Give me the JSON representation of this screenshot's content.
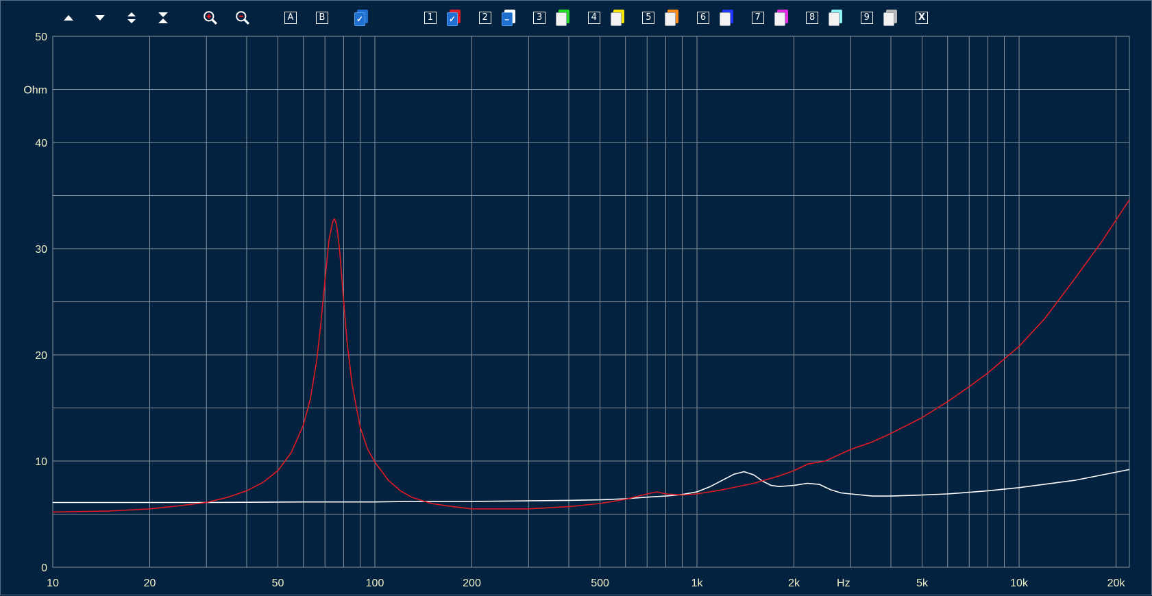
{
  "toolbar": {
    "nav_buttons": [
      {
        "name": "scroll-up",
        "icon": "triangle-up-icon"
      },
      {
        "name": "scroll-down",
        "icon": "triangle-down-icon"
      },
      {
        "name": "expand-range",
        "icon": "expand-arrows-icon"
      },
      {
        "name": "compress-range",
        "icon": "compress-arrows-icon"
      }
    ],
    "zoom_buttons": [
      {
        "name": "zoom-in",
        "icon": "zoom-in-icon"
      },
      {
        "name": "zoom-out",
        "icon": "zoom-out-icon"
      }
    ],
    "mode_buttons": [
      {
        "name": "mode-a",
        "label": "A"
      },
      {
        "name": "mode-b",
        "label": "B"
      }
    ],
    "overlay_slots": [
      {
        "label": "1",
        "color": "#e01b24",
        "state": "checked"
      },
      {
        "label": "2",
        "color": "#ffffff",
        "state": "minus"
      },
      {
        "label": "3",
        "color": "#22dd22",
        "state": "empty"
      },
      {
        "label": "4",
        "color": "#f5e600",
        "state": "empty"
      },
      {
        "label": "5",
        "color": "#ff8c1a",
        "state": "empty"
      },
      {
        "label": "6",
        "color": "#2233ff",
        "state": "empty"
      },
      {
        "label": "7",
        "color": "#e02be0",
        "state": "empty"
      },
      {
        "label": "8",
        "color": "#8ff2f2",
        "state": "empty"
      },
      {
        "label": "9",
        "color": "#b8b8b8",
        "state": "empty"
      }
    ],
    "close_label": "X",
    "colors": {
      "icon": "#ffffff",
      "current_swatch": "#1f6fd0"
    }
  },
  "chart_data": {
    "type": "line",
    "xscale": "log",
    "xlim": [
      10,
      22000
    ],
    "ylim": [
      0,
      50
    ],
    "ylabel": "Ohm",
    "xlabel": "Hz",
    "grid": true,
    "yticks": [
      {
        "value": 0,
        "label": "0"
      },
      {
        "value": 10,
        "label": "10"
      },
      {
        "value": 20,
        "label": "20"
      },
      {
        "value": 30,
        "label": "30"
      },
      {
        "value": 40,
        "label": "40"
      },
      {
        "value": 50,
        "label": "50"
      }
    ],
    "xticks": [
      {
        "value": 10,
        "label": "10"
      },
      {
        "value": 20,
        "label": "20"
      },
      {
        "value": 50,
        "label": "50"
      },
      {
        "value": 100,
        "label": "100"
      },
      {
        "value": 200,
        "label": "200"
      },
      {
        "value": 500,
        "label": "500"
      },
      {
        "value": 1000,
        "label": "1k"
      },
      {
        "value": 2000,
        "label": "2k"
      },
      {
        "value": 5000,
        "label": "5k"
      },
      {
        "value": 10000,
        "label": "10k"
      },
      {
        "value": 20000,
        "label": "20k"
      }
    ],
    "colors": {
      "background": "#03223f",
      "grid": "#8a949e",
      "tick_text": "#f2f2c8"
    },
    "series": [
      {
        "color": "#e01b24",
        "x": [
          10,
          15,
          20,
          25,
          30,
          35,
          40,
          45,
          50,
          55,
          60,
          63,
          66,
          68,
          70,
          72,
          74,
          75,
          76,
          77,
          78,
          80,
          82,
          85,
          90,
          95,
          100,
          110,
          120,
          130,
          150,
          175,
          200,
          250,
          300,
          400,
          500,
          600,
          700,
          750,
          800,
          900,
          1000,
          1200,
          1500,
          1800,
          2000,
          2200,
          2500,
          3000,
          3500,
          4000,
          5000,
          6000,
          7000,
          8000,
          10000,
          12000,
          15000,
          18000,
          22000
        ],
        "y": [
          5.2,
          5.3,
          5.5,
          5.8,
          6.1,
          6.6,
          7.2,
          8.0,
          9.1,
          10.8,
          13.4,
          15.8,
          19.5,
          23.0,
          27.0,
          30.8,
          32.6,
          32.8,
          32.3,
          31.0,
          29.3,
          25.0,
          21.2,
          17.2,
          13.2,
          11.1,
          9.9,
          8.2,
          7.2,
          6.6,
          6.0,
          5.7,
          5.5,
          5.5,
          5.5,
          5.7,
          6.0,
          6.4,
          6.9,
          7.1,
          6.9,
          6.8,
          6.9,
          7.3,
          7.9,
          8.6,
          9.1,
          9.7,
          10.0,
          11.1,
          11.8,
          12.6,
          14.1,
          15.6,
          17.0,
          18.3,
          20.8,
          23.4,
          27.3,
          30.6,
          34.6
        ]
      },
      {
        "color": "#ffffff",
        "x": [
          10,
          30,
          60,
          100,
          130,
          200,
          300,
          400,
          500,
          600,
          700,
          800,
          900,
          1000,
          1100,
          1200,
          1300,
          1400,
          1500,
          1600,
          1700,
          1800,
          2000,
          2200,
          2400,
          2600,
          2800,
          3000,
          3500,
          4000,
          5000,
          6000,
          8000,
          10000,
          15000,
          22000
        ],
        "y": [
          6.1,
          6.1,
          6.15,
          6.15,
          6.2,
          6.2,
          6.25,
          6.3,
          6.35,
          6.45,
          6.6,
          6.7,
          6.85,
          7.1,
          7.6,
          8.2,
          8.75,
          9.0,
          8.7,
          8.1,
          7.7,
          7.6,
          7.7,
          7.9,
          7.8,
          7.3,
          7.0,
          6.9,
          6.7,
          6.7,
          6.8,
          6.9,
          7.2,
          7.5,
          8.2,
          9.2
        ]
      }
    ]
  }
}
